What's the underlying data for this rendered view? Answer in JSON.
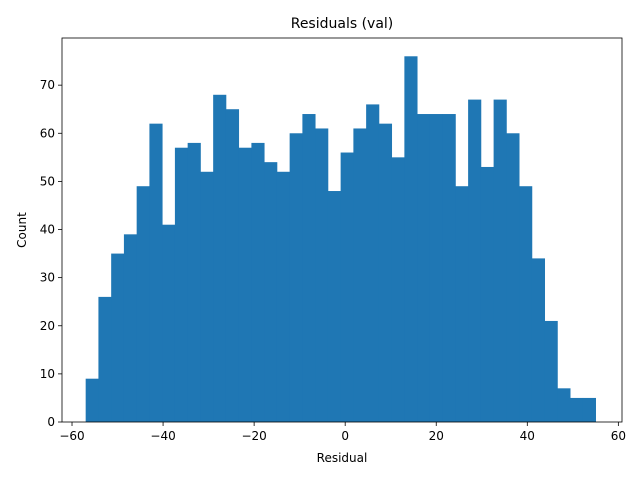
{
  "chart_data": {
    "type": "bar",
    "title": "Residuals (val)",
    "xlabel": "Residual",
    "ylabel": "Count",
    "bar_color": "#1f77b4",
    "xlim": [
      -62.2,
      60.8
    ],
    "ylim": [
      0,
      79.8
    ],
    "bin_start": -57.0,
    "bin_width": 2.8,
    "counts": [
      9,
      26,
      35,
      39,
      49,
      62,
      41,
      57,
      58,
      52,
      68,
      65,
      57,
      58,
      54,
      52,
      60,
      64,
      61,
      48,
      56,
      61,
      66,
      62,
      55,
      76,
      64,
      64,
      64,
      49,
      67,
      53,
      67,
      60,
      49,
      34,
      21,
      7,
      5,
      5
    ],
    "x_ticks": [
      {
        "value": -60,
        "label": "−60"
      },
      {
        "value": -40,
        "label": "−40"
      },
      {
        "value": -20,
        "label": "−20"
      },
      {
        "value": 0,
        "label": "0"
      },
      {
        "value": 20,
        "label": "20"
      },
      {
        "value": 40,
        "label": "40"
      },
      {
        "value": 60,
        "label": "60"
      }
    ],
    "y_ticks": [
      {
        "value": 0,
        "label": "0"
      },
      {
        "value": 10,
        "label": "10"
      },
      {
        "value": 20,
        "label": "20"
      },
      {
        "value": 30,
        "label": "30"
      },
      {
        "value": 40,
        "label": "40"
      },
      {
        "value": 50,
        "label": "50"
      },
      {
        "value": 60,
        "label": "60"
      },
      {
        "value": 70,
        "label": "70"
      }
    ],
    "grid": false,
    "legend": "none"
  }
}
